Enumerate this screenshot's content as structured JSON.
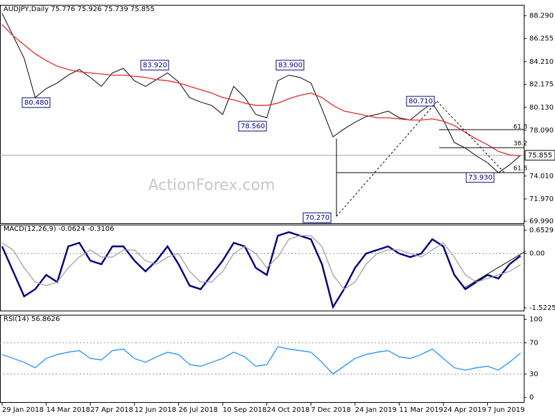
{
  "chart_data": [
    {
      "type": "line",
      "title": "AUDJPY,Daily  75.776 75.926 75.739 75.855",
      "categories": [
        "29 Jan 2018",
        null,
        null,
        null,
        "14 Mar 2018",
        null,
        null,
        null,
        "27 Apr 2018",
        null,
        null,
        null,
        "12 Jun 2018",
        null,
        null,
        null,
        "26 Jul 2018",
        null,
        null,
        null,
        "10 Sep 2018",
        null,
        null,
        null,
        "24 Oct 2018",
        null,
        null,
        null,
        "7 Dec 2018",
        null,
        null,
        null,
        "24 Jan 2019",
        null,
        null,
        null,
        "11 Mar 2019",
        null,
        null,
        null,
        "24 Apr 2019",
        null,
        null,
        null,
        "7 Jun 2019",
        null,
        null,
        null
      ],
      "series": [
        {
          "color": "#000000",
          "values": [
            88.5,
            86.5,
            84.5,
            81.0,
            81.8,
            82.3,
            83.0,
            83.5,
            82.8,
            82.0,
            83.2,
            83.6,
            82.5,
            82.0,
            82.6,
            83.2,
            82.4,
            81.0,
            80.6,
            80.3,
            79.5,
            82.0,
            81.0,
            79.5,
            79.2,
            82.5,
            83.0,
            82.8,
            82.3,
            80.0,
            77.5,
            78.2,
            78.8,
            79.3,
            79.5,
            79.8,
            79.2,
            79.0,
            79.8,
            80.5,
            79.0,
            77.0,
            76.5,
            75.8,
            75.2,
            74.3,
            75.0,
            75.855
          ]
        },
        {
          "color": "#e8262a",
          "values": [
            87.5,
            86.5,
            85.7,
            84.9,
            84.3,
            83.8,
            83.5,
            83.3,
            83.2,
            83.1,
            83.0,
            83.0,
            82.9,
            82.8,
            82.6,
            82.5,
            82.3,
            82.0,
            81.7,
            81.4,
            81.0,
            80.8,
            80.5,
            80.3,
            80.3,
            80.5,
            80.9,
            81.2,
            81.4,
            81.0,
            80.3,
            79.8,
            79.6,
            79.4,
            79.2,
            79.2,
            79.1,
            79.0,
            79.0,
            79.1,
            78.9,
            78.5,
            77.9,
            77.3,
            76.8,
            76.2,
            75.9,
            75.8
          ]
        }
      ],
      "ylim": [
        69.8,
        89.2
      ],
      "yticks": [
        {
          "value": 69.99,
          "label": "69.990"
        },
        {
          "value": 71.97,
          "label": "71.970"
        },
        {
          "value": 74.01,
          "label": "74.010"
        },
        {
          "value": 78.09,
          "label": "78.090"
        },
        {
          "value": 80.13,
          "label": "80.130"
        },
        {
          "value": 82.175,
          "label": "82.175"
        },
        {
          "value": 84.21,
          "label": "84.210"
        },
        {
          "value": 86.255,
          "label": "86.255"
        },
        {
          "value": 88.29,
          "label": "88.290"
        }
      ],
      "last_price": 75.855,
      "grid": false,
      "watermark": "ActionForex.com",
      "annotations": [
        "80.480",
        "83.920",
        "83.900",
        "78.560",
        "80.710",
        "70.270",
        "73.930",
        "61.8",
        "38.2",
        "61.8"
      ]
    },
    {
      "type": "line",
      "title": "MACD(12,26,9) -0.0624 -0.3106",
      "series": [
        {
          "color": "#000080",
          "values": [
            0.2,
            -0.5,
            -1.2,
            -1.0,
            -0.6,
            -0.8,
            0.2,
            0.3,
            -0.2,
            -0.3,
            0.2,
            0.2,
            -0.2,
            -0.5,
            -0.2,
            0.2,
            -0.3,
            -0.9,
            -1.0,
            -0.6,
            -0.2,
            0.3,
            0.2,
            -0.4,
            -0.6,
            0.5,
            0.6,
            0.5,
            0.4,
            -0.3,
            -1.5,
            -1.0,
            -0.4,
            0.0,
            0.1,
            0.2,
            0.0,
            -0.1,
            0.0,
            0.4,
            0.2,
            -0.6,
            -1.0,
            -0.8,
            -0.6,
            -0.7,
            -0.3,
            -0.0624
          ]
        },
        {
          "color": "#a0a0a0",
          "values": [
            0.3,
            0.1,
            -0.4,
            -0.8,
            -0.9,
            -0.8,
            -0.4,
            -0.1,
            0.1,
            -0.1,
            -0.1,
            0.1,
            0.1,
            -0.2,
            -0.3,
            -0.1,
            0.0,
            -0.5,
            -0.8,
            -0.8,
            -0.5,
            0.0,
            0.2,
            0.0,
            -0.4,
            -0.1,
            0.4,
            0.5,
            0.5,
            0.2,
            -0.6,
            -1.0,
            -0.8,
            -0.3,
            0.0,
            0.1,
            0.1,
            0.0,
            -0.1,
            0.1,
            0.3,
            -0.1,
            -0.6,
            -0.8,
            -0.7,
            -0.6,
            -0.5,
            -0.3106
          ]
        }
      ],
      "ylim": [
        -1.6,
        0.79
      ],
      "yticks": [
        -1.5225,
        {
          "value": 0,
          "label": "0.00"
        },
        0.6529
      ],
      "grid": true
    },
    {
      "type": "line",
      "title": "RSI(14) 56.8626",
      "series": [
        {
          "color": "#1e90ff",
          "values": [
            55,
            50,
            45,
            38,
            50,
            55,
            58,
            60,
            50,
            48,
            60,
            62,
            50,
            45,
            52,
            58,
            55,
            42,
            40,
            45,
            50,
            58,
            52,
            40,
            42,
            65,
            62,
            60,
            58,
            45,
            30,
            40,
            50,
            55,
            58,
            60,
            52,
            50,
            55,
            62,
            50,
            38,
            35,
            38,
            40,
            35,
            45,
            56.8626
          ]
        }
      ],
      "ylim": [
        -6,
        105
      ],
      "yticks": [
        0,
        30,
        70,
        100
      ],
      "grid": true
    }
  ]
}
